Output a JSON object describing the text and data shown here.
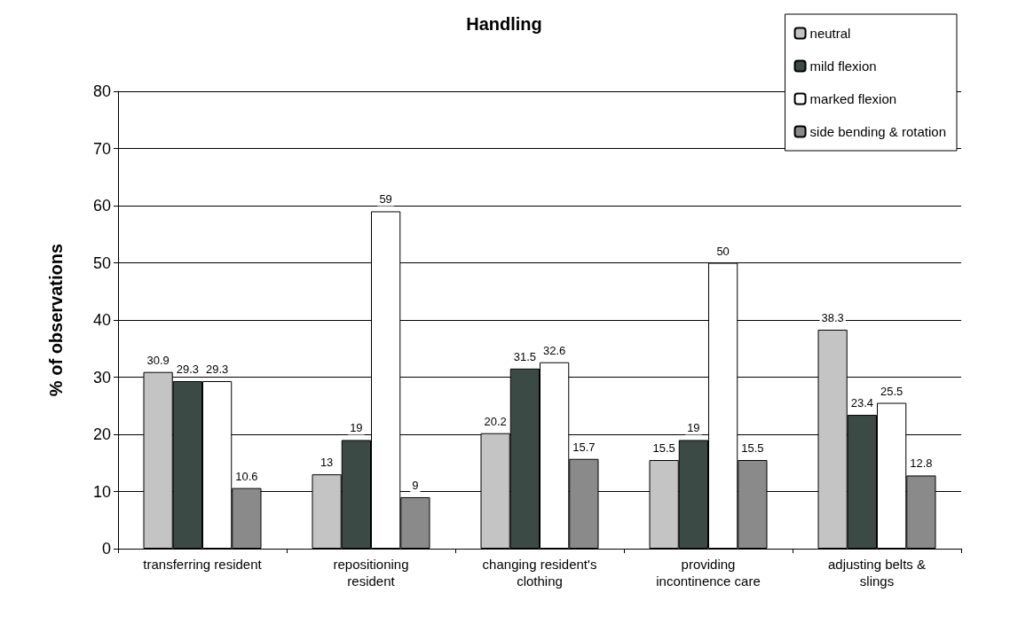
{
  "chart_data": {
    "type": "bar",
    "title": "Handling",
    "ylabel": "% of observations",
    "categories": [
      "transferring resident",
      "repositioning\nresident",
      "changing resident's\nclothing",
      "providing\nincontinence care",
      "adjusting belts &\nslings"
    ],
    "series": [
      {
        "name": "neutral",
        "color": "#c4c4c4",
        "values": [
          30.9,
          13,
          20.2,
          15.5,
          38.3
        ]
      },
      {
        "name": "mild flexion",
        "color": "#3c4a45",
        "values": [
          29.3,
          19,
          31.5,
          19,
          23.4
        ]
      },
      {
        "name": "marked flexion",
        "color": "#ffffff",
        "values": [
          29.3,
          59,
          32.6,
          50,
          25.5
        ]
      },
      {
        "name": "side bending & rotation",
        "color": "#8a8a8a",
        "values": [
          10.6,
          9,
          15.7,
          15.5,
          12.8
        ]
      }
    ],
    "ylim": [
      0,
      80
    ],
    "yticks": [
      0,
      10,
      20,
      30,
      40,
      50,
      60,
      70,
      80
    ],
    "grid": "y",
    "legend": "top right",
    "data_labels": true
  }
}
